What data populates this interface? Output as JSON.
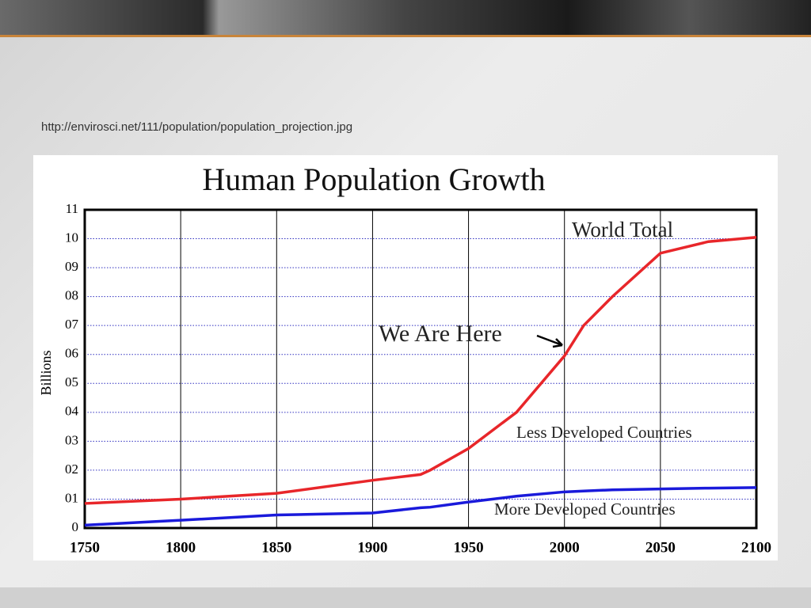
{
  "caption": "http://envirosci.net/111/population/population_projection.jpg",
  "chart_data": {
    "type": "line",
    "title": "Human Population Growth",
    "y_label": "Billions",
    "x": [
      1750,
      1800,
      1850,
      1900,
      1925,
      1930,
      1950,
      1975,
      2000,
      2010,
      2025,
      2050,
      2075,
      2100
    ],
    "series": [
      {
        "name": "World Total",
        "color": "#e8262a",
        "values": [
          0.85,
          1.0,
          1.2,
          1.65,
          1.85,
          2.0,
          2.75,
          4.0,
          5.95,
          7.0,
          8.0,
          9.5,
          9.9,
          10.05
        ]
      },
      {
        "name": "More Developed Countries",
        "color": "#1a1adb",
        "values": [
          0.1,
          0.27,
          0.45,
          0.52,
          0.7,
          0.72,
          0.9,
          1.1,
          1.25,
          1.28,
          1.32,
          1.35,
          1.38,
          1.4
        ]
      }
    ],
    "annotations": [
      "We Are Here",
      "Less Developed Countries"
    ],
    "xlim": [
      1750,
      2100
    ],
    "xticks": [
      1750,
      1800,
      1850,
      1900,
      1950,
      2000,
      2050,
      2100
    ],
    "ylim": [
      0,
      11
    ],
    "yticks": [
      0,
      {
        "value": 1,
        "label": "01"
      },
      {
        "value": 2,
        "label": "02"
      },
      {
        "value": 3,
        "label": "03"
      },
      {
        "value": 4,
        "label": "04"
      },
      {
        "value": 5,
        "label": "05"
      },
      {
        "value": 6,
        "label": "06"
      },
      {
        "value": 7,
        "label": "07"
      },
      {
        "value": 8,
        "label": "08"
      },
      {
        "value": 9,
        "label": "09"
      },
      10,
      11
    ],
    "grid": true
  }
}
